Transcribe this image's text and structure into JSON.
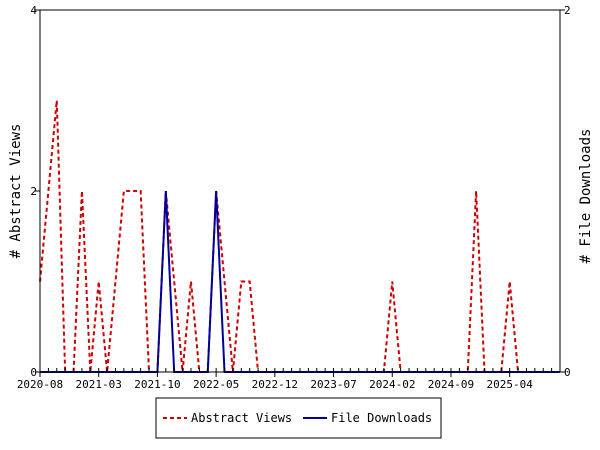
{
  "chart_data": {
    "type": "line",
    "xlabel": "",
    "ylabel_left": "# Abstract Views",
    "ylabel_right": "# File Downloads",
    "x_tick_labels": [
      "2020-08",
      "2021-03",
      "2021-10",
      "2022-05",
      "2022-12",
      "2023-07",
      "2024-02",
      "2024-09",
      "2025-04"
    ],
    "ylim_left": [
      0,
      4
    ],
    "ylim_right": [
      0,
      2
    ],
    "yticks_left": [
      "0",
      "2",
      "4"
    ],
    "yticks_right": [
      "0",
      "2"
    ],
    "grid": false,
    "legend_position": "bottom",
    "x_start": "2020-08",
    "x_end": "2025-10",
    "series": [
      {
        "name": "Abstract Views",
        "axis": "left",
        "color": "#cc0000",
        "dash": true,
        "points": [
          [
            "2020-08",
            1
          ],
          [
            "2020-09",
            2
          ],
          [
            "2020-10",
            3
          ],
          [
            "2020-11",
            0
          ],
          [
            "2020-12",
            0
          ],
          [
            "2021-01",
            2
          ],
          [
            "2021-02",
            0
          ],
          [
            "2021-03",
            1
          ],
          [
            "2021-04",
            0
          ],
          [
            "2021-05",
            1
          ],
          [
            "2021-06",
            2
          ],
          [
            "2021-07",
            2
          ],
          [
            "2021-08",
            2
          ],
          [
            "2021-09",
            0
          ],
          [
            "2021-10",
            0
          ],
          [
            "2021-11",
            2
          ],
          [
            "2021-12",
            1
          ],
          [
            "2022-01",
            0
          ],
          [
            "2022-02",
            1
          ],
          [
            "2022-03",
            0
          ],
          [
            "2022-04",
            0
          ],
          [
            "2022-05",
            2
          ],
          [
            "2022-06",
            1
          ],
          [
            "2022-07",
            0
          ],
          [
            "2022-08",
            1
          ],
          [
            "2022-09",
            1
          ],
          [
            "2022-10",
            0
          ],
          [
            "2024-01",
            0
          ],
          [
            "2024-02",
            1
          ],
          [
            "2024-03",
            0
          ],
          [
            "2024-11",
            0
          ],
          [
            "2024-12",
            2
          ],
          [
            "2025-01",
            0
          ],
          [
            "2025-03",
            0
          ],
          [
            "2025-04",
            1
          ],
          [
            "2025-05",
            0
          ],
          [
            "2025-10",
            0
          ]
        ]
      },
      {
        "name": "File Downloads",
        "axis": "right",
        "color": "#000099",
        "dash": false,
        "points": [
          [
            "2020-08",
            0
          ],
          [
            "2021-10",
            0
          ],
          [
            "2021-11",
            1
          ],
          [
            "2021-12",
            0
          ],
          [
            "2022-04",
            0
          ],
          [
            "2022-05",
            1
          ],
          [
            "2022-06",
            0
          ],
          [
            "2025-10",
            0
          ]
        ]
      }
    ]
  }
}
